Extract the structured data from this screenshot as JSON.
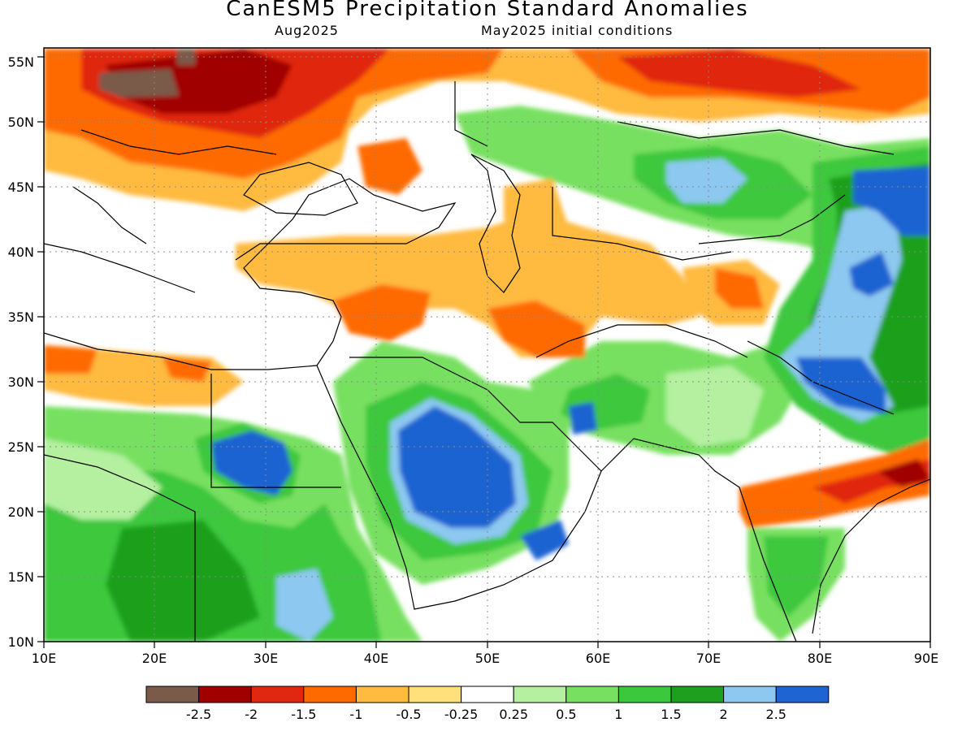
{
  "title": "CanESM5 Precipitation Standard Anomalies",
  "subtitle_left": "Aug2025",
  "subtitle_right": "May2025 initial conditions",
  "lon_ticks": [
    "10E",
    "20E",
    "30E",
    "40E",
    "50E",
    "60E",
    "70E",
    "80E",
    "90E"
  ],
  "lat_ticks": [
    "10N",
    "15N",
    "20N",
    "25N",
    "30N",
    "35N",
    "40N",
    "45N",
    "50N",
    "55N"
  ],
  "colorbar": {
    "colors": [
      "#7a5a48",
      "#a00000",
      "#e02810",
      "#ff6a00",
      "#ffba40",
      "#ffe07a",
      "#ffffff",
      "#b4f0a0",
      "#78e060",
      "#3cc83c",
      "#1ea01e",
      "#8cc8f0",
      "#1e64d2"
    ],
    "labels": [
      "-2.5",
      "-2",
      "-1.5",
      "-1",
      "-0.5",
      "-0.25",
      "0.25",
      "0.5",
      "1",
      "1.5",
      "2",
      "2.5"
    ]
  }
}
